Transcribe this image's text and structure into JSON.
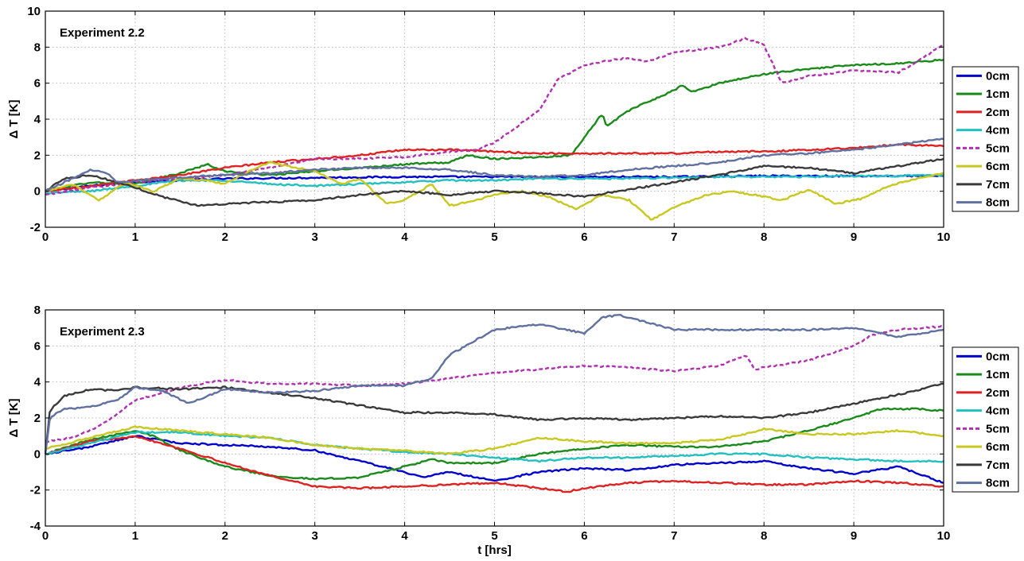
{
  "chart_data": [
    {
      "type": "line",
      "annotation": "Experiment 2.2",
      "xlabel": "",
      "ylabel": "Δ T [K]",
      "xlim": [
        0,
        10
      ],
      "ylim": [
        -2,
        10
      ],
      "xticks": [
        "0",
        "1",
        "2",
        "3",
        "4",
        "5",
        "6",
        "7",
        "8",
        "9",
        "10"
      ],
      "yticks": [
        "-2",
        "0",
        "2",
        "4",
        "6",
        "8",
        "10"
      ],
      "grid": true,
      "legend": "right",
      "series": [
        {
          "name": "0cm",
          "color": "#0000cc",
          "dash": false,
          "x": [
            0,
            0.5,
            1,
            1.5,
            2,
            3,
            4,
            5,
            6,
            7,
            8,
            9,
            10
          ],
          "values": [
            0,
            0.3,
            0.5,
            0.6,
            0.7,
            0.75,
            0.8,
            0.8,
            0.8,
            0.8,
            0.85,
            0.85,
            0.85
          ]
        },
        {
          "name": "1cm",
          "color": "#1a8a1a",
          "dash": false,
          "x": [
            0,
            0.5,
            1,
            1.5,
            1.8,
            2,
            2.5,
            3,
            3.5,
            4,
            4.5,
            4.7,
            5,
            5.5,
            5.85,
            6,
            6.2,
            6.25,
            6.5,
            7,
            7.1,
            7.2,
            7.5,
            8,
            8.5,
            9,
            9.5,
            10
          ],
          "values": [
            0,
            0.5,
            0.4,
            1.0,
            1.5,
            1.1,
            0.9,
            1.1,
            1.3,
            1.5,
            1.6,
            2.0,
            1.8,
            1.9,
            2.0,
            3.0,
            4.3,
            3.6,
            4.5,
            5.6,
            5.9,
            5.5,
            6.0,
            6.5,
            6.8,
            7.0,
            7.1,
            7.3
          ]
        },
        {
          "name": "2cm",
          "color": "#dd2222",
          "dash": false,
          "x": [
            0,
            0.5,
            1,
            1.5,
            2,
            2.5,
            3,
            3.5,
            4,
            4.5,
            5,
            5.5,
            6,
            6.5,
            7,
            7.5,
            8,
            8.5,
            9,
            9.5,
            10
          ],
          "values": [
            0,
            0.3,
            0.6,
            0.9,
            1.3,
            1.6,
            1.8,
            2.0,
            2.3,
            2.3,
            2.2,
            2.1,
            2.1,
            2.1,
            2.1,
            2.2,
            2.2,
            2.3,
            2.4,
            2.6,
            2.5
          ]
        },
        {
          "name": "4cm",
          "color": "#22c0c0",
          "dash": false,
          "x": [
            0,
            0.5,
            1,
            1.5,
            2,
            2.5,
            3,
            3.5,
            4,
            4.5,
            5,
            5.5,
            6,
            6.5,
            7,
            7.5,
            8,
            8.5,
            9,
            9.5,
            10
          ],
          "values": [
            -0.1,
            0.0,
            0.3,
            0.6,
            0.6,
            0.4,
            0.3,
            0.4,
            0.5,
            0.6,
            0.6,
            0.7,
            0.7,
            0.7,
            0.75,
            0.8,
            0.8,
            0.8,
            0.85,
            0.85,
            0.9
          ]
        },
        {
          "name": "5cm",
          "color": "#b030b0",
          "dash": true,
          "x": [
            0,
            0.5,
            1,
            1.5,
            2,
            2.5,
            3,
            3.5,
            4,
            4.5,
            4.8,
            5,
            5.2,
            5.5,
            5.7,
            6,
            6.2,
            6.5,
            6.7,
            7,
            7.5,
            7.8,
            8,
            8.2,
            8.5,
            9,
            9.5,
            9.8,
            10
          ],
          "values": [
            -0.2,
            0.2,
            0.5,
            0.7,
            0.9,
            1.3,
            1.8,
            1.8,
            1.9,
            2.2,
            2.3,
            2.7,
            3.4,
            4.5,
            6.2,
            7.0,
            7.2,
            7.4,
            7.2,
            7.7,
            8.0,
            8.5,
            8.1,
            6.0,
            6.4,
            6.7,
            6.6,
            7.5,
            8.2
          ]
        },
        {
          "name": "6cm",
          "color": "#c8c820",
          "dash": false,
          "x": [
            0,
            0.3,
            0.6,
            0.9,
            1.2,
            1.5,
            1.8,
            2,
            2.3,
            2.5,
            2.8,
            3,
            3.3,
            3.5,
            3.8,
            4,
            4.3,
            4.5,
            4.8,
            5,
            5.3,
            5.6,
            5.9,
            6.2,
            6.5,
            6.75,
            7,
            7.3,
            7.6,
            7.9,
            8.2,
            8.5,
            8.8,
            9.1,
            9.4,
            9.7,
            10
          ],
          "values": [
            0,
            0.4,
            -0.5,
            0.5,
            0.0,
            0.7,
            0.6,
            0.4,
            1.2,
            1.6,
            1.3,
            1.1,
            0.4,
            0.7,
            -0.7,
            -0.5,
            0.4,
            -0.8,
            -0.5,
            -0.2,
            0.0,
            -0.3,
            -1.0,
            -0.2,
            -0.5,
            -1.6,
            -0.9,
            -0.3,
            0.0,
            -0.2,
            -0.5,
            0.1,
            -0.7,
            -0.4,
            0.3,
            0.7,
            1.0
          ]
        },
        {
          "name": "7cm",
          "color": "#3a3a3a",
          "dash": false,
          "x": [
            0,
            0.2,
            0.5,
            0.8,
            1,
            1.3,
            1.7,
            2,
            2.5,
            3,
            3.5,
            4,
            4.5,
            5,
            5.5,
            6,
            6.5,
            7,
            7.5,
            8,
            8.5,
            9,
            9.5,
            10
          ],
          "values": [
            0,
            0.7,
            0.9,
            0.5,
            0.2,
            -0.3,
            -0.8,
            -0.7,
            -0.6,
            -0.5,
            -0.2,
            0.0,
            -0.2,
            0.0,
            -0.1,
            -0.3,
            0.1,
            0.5,
            0.9,
            1.4,
            1.3,
            1.0,
            1.4,
            1.8
          ]
        },
        {
          "name": "8cm",
          "color": "#6070a0",
          "dash": false,
          "x": [
            0,
            0.3,
            0.5,
            0.7,
            0.8,
            1,
            1.3,
            1.6,
            2,
            2.5,
            3,
            3.5,
            4,
            4.5,
            5,
            5.5,
            6,
            6.5,
            7,
            7.5,
            8,
            8.5,
            9,
            9.5,
            10
          ],
          "values": [
            0,
            0.7,
            1.2,
            1.0,
            0.5,
            0.6,
            0.7,
            0.8,
            0.9,
            1.0,
            1.2,
            1.3,
            1.3,
            1.2,
            0.9,
            0.8,
            0.9,
            1.2,
            1.4,
            1.6,
            2.0,
            2.1,
            2.3,
            2.6,
            2.9
          ]
        }
      ]
    },
    {
      "type": "line",
      "annotation": "Experiment 2.3",
      "xlabel": "t [hrs]",
      "ylabel": "Δ T [K]",
      "xlim": [
        0,
        10
      ],
      "ylim": [
        -4,
        8
      ],
      "xticks": [
        "0",
        "1",
        "2",
        "3",
        "4",
        "5",
        "6",
        "7",
        "8",
        "9",
        "10"
      ],
      "yticks": [
        "-4",
        "-2",
        "0",
        "2",
        "4",
        "6",
        "8"
      ],
      "grid": true,
      "legend": "right",
      "series": [
        {
          "name": "0cm",
          "color": "#0000cc",
          "dash": false,
          "x": [
            0,
            0.5,
            1,
            1.5,
            2,
            2.5,
            3,
            3.5,
            4,
            4.2,
            4.5,
            5,
            5.2,
            5.5,
            6,
            6.5,
            7,
            7.5,
            8,
            8.5,
            9,
            9.5,
            10
          ],
          "values": [
            0,
            0.4,
            1.0,
            0.6,
            0.5,
            0.4,
            0.2,
            -0.4,
            -1.0,
            -1.3,
            -1.0,
            -1.5,
            -1.3,
            -1.0,
            -0.8,
            -0.9,
            -0.6,
            -0.5,
            -0.4,
            -0.8,
            -1.1,
            -0.7,
            -1.6
          ]
        },
        {
          "name": "1cm",
          "color": "#1a8a1a",
          "dash": false,
          "x": [
            0,
            0.5,
            1,
            1.2,
            1.5,
            2,
            2.5,
            3,
            3.5,
            4,
            4.3,
            4.5,
            5,
            5.5,
            6,
            6.5,
            7,
            7.5,
            8,
            8.5,
            9,
            9.3,
            9.7,
            10
          ],
          "values": [
            0,
            0.8,
            1.3,
            1.0,
            0.2,
            -0.7,
            -1.2,
            -1.4,
            -1.3,
            -0.7,
            -0.3,
            -0.5,
            -0.5,
            0.0,
            0.3,
            0.5,
            0.4,
            0.4,
            0.7,
            1.3,
            2.0,
            2.5,
            2.5,
            2.4
          ]
        },
        {
          "name": "2cm",
          "color": "#dd2222",
          "dash": false,
          "x": [
            0,
            0.5,
            1,
            1.5,
            2,
            2.5,
            3,
            3.5,
            4,
            4.5,
            5,
            5.5,
            5.8,
            6,
            6.5,
            7,
            7.5,
            8,
            8.5,
            9,
            9.5,
            10
          ],
          "values": [
            0,
            0.7,
            1.0,
            0.3,
            -0.5,
            -1.2,
            -1.8,
            -1.9,
            -1.8,
            -1.7,
            -1.6,
            -1.9,
            -2.1,
            -1.9,
            -1.6,
            -1.5,
            -1.6,
            -1.7,
            -1.7,
            -1.5,
            -1.6,
            -1.8
          ]
        },
        {
          "name": "4cm",
          "color": "#22c0c0",
          "dash": false,
          "x": [
            0,
            0.5,
            1,
            1.5,
            2,
            2.5,
            3,
            3.5,
            4,
            4.5,
            5,
            5.5,
            6,
            6.5,
            7,
            7.5,
            8,
            8.5,
            9,
            9.5,
            10
          ],
          "values": [
            0,
            0.6,
            1.2,
            1.2,
            1.0,
            0.9,
            0.5,
            0.3,
            0.1,
            0.0,
            -0.2,
            -0.4,
            -0.2,
            -0.2,
            -0.1,
            0.0,
            0.0,
            -0.2,
            -0.3,
            -0.4,
            -0.4
          ]
        },
        {
          "name": "5cm",
          "color": "#b030b0",
          "dash": true,
          "x": [
            0,
            0.3,
            0.5,
            0.8,
            1,
            1.3,
            1.6,
            2,
            2.5,
            3,
            3.5,
            4,
            4.5,
            5,
            5.5,
            6,
            6.5,
            7,
            7.5,
            7.8,
            7.9,
            8,
            8.5,
            9,
            9.2,
            9.5,
            10
          ],
          "values": [
            0.7,
            0.9,
            1.3,
            2.2,
            3.0,
            3.4,
            3.8,
            4.1,
            3.9,
            3.9,
            3.8,
            3.9,
            4.2,
            4.5,
            4.7,
            4.9,
            4.8,
            4.6,
            4.9,
            5.5,
            4.7,
            4.8,
            5.2,
            6.0,
            6.6,
            6.9,
            7.1
          ]
        },
        {
          "name": "6cm",
          "color": "#c8c820",
          "dash": false,
          "x": [
            0,
            0.5,
            1,
            1.5,
            2,
            2.5,
            3,
            3.5,
            4,
            4.5,
            5,
            5.5,
            6,
            6.5,
            7,
            7.5,
            7.8,
            8,
            8.5,
            9,
            9.5,
            10
          ],
          "values": [
            0.3,
            0.9,
            1.5,
            1.3,
            1.1,
            0.9,
            0.5,
            0.3,
            0.2,
            0.0,
            0.3,
            0.9,
            0.7,
            0.6,
            0.6,
            0.8,
            1.1,
            1.4,
            1.1,
            1.1,
            1.3,
            1.0
          ]
        },
        {
          "name": "7cm",
          "color": "#3a3a3a",
          "dash": false,
          "x": [
            0,
            0.05,
            0.2,
            0.5,
            0.8,
            1,
            1.5,
            2,
            2.5,
            3,
            3.5,
            4,
            4.5,
            5,
            5.5,
            6,
            6.5,
            7,
            7.5,
            8,
            8.5,
            9,
            9.5,
            10
          ],
          "values": [
            0,
            2.4,
            3.2,
            3.6,
            3.5,
            3.7,
            3.6,
            3.7,
            3.4,
            3.1,
            2.7,
            2.3,
            2.3,
            2.2,
            1.9,
            2.0,
            1.9,
            2.0,
            2.1,
            2.0,
            2.3,
            2.8,
            3.3,
            3.9
          ]
        },
        {
          "name": "8cm",
          "color": "#6070a0",
          "dash": false,
          "x": [
            0,
            0.05,
            0.2,
            0.5,
            0.8,
            1,
            1.3,
            1.6,
            2,
            2.5,
            3,
            3.5,
            4,
            4.3,
            4.5,
            5,
            5.5,
            6,
            6.2,
            6.4,
            7,
            7.5,
            8,
            8.5,
            9,
            9.5,
            10
          ],
          "values": [
            0,
            2.0,
            2.5,
            2.6,
            3.0,
            3.7,
            3.5,
            2.8,
            3.6,
            3.4,
            3.5,
            3.8,
            3.8,
            4.2,
            5.5,
            6.9,
            7.2,
            6.7,
            7.6,
            7.7,
            6.9,
            6.9,
            6.9,
            6.9,
            7.0,
            6.5,
            6.9
          ]
        }
      ]
    }
  ]
}
